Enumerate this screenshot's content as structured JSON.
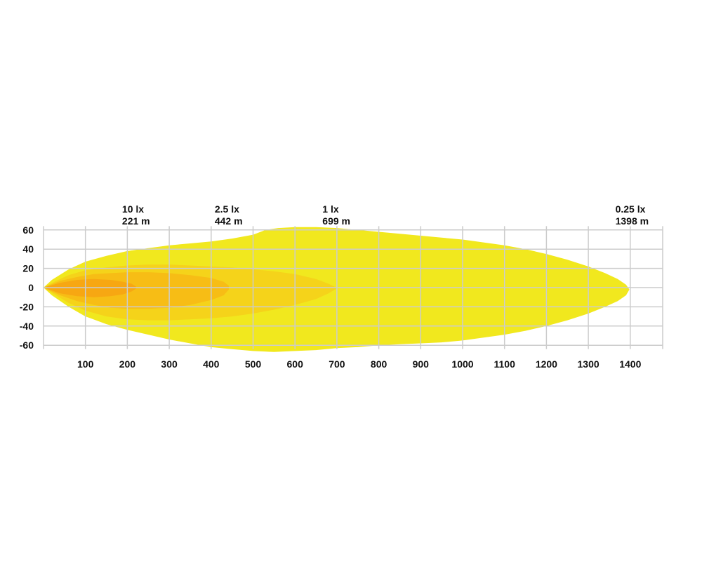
{
  "chart_data": {
    "type": "area",
    "xlabel": "",
    "ylabel": "",
    "xlim": [
      0,
      1480
    ],
    "ylim": [
      -70,
      70
    ],
    "x_ticks": [
      100,
      200,
      300,
      400,
      500,
      600,
      700,
      800,
      900,
      1000,
      1100,
      1200,
      1300,
      1400
    ],
    "y_ticks": [
      60,
      40,
      20,
      0,
      -20,
      -40,
      -60
    ],
    "grid": true,
    "zone_labels": [
      {
        "lux": "10 lx",
        "distance": "221 m",
        "x": 221
      },
      {
        "lux": "2.5 lx",
        "distance": "442 m",
        "x": 442
      },
      {
        "lux": "1 lx",
        "distance": "699 m",
        "x": 699
      },
      {
        "lux": "0.25 lx",
        "distance": "1398 m",
        "x": 1398
      }
    ],
    "contours": [
      {
        "lux": "0.25 lx",
        "color": "#f1e81e",
        "upper": [
          [
            0,
            0
          ],
          [
            20,
            8
          ],
          [
            60,
            19
          ],
          [
            100,
            27
          ],
          [
            150,
            33
          ],
          [
            200,
            38
          ],
          [
            250,
            41
          ],
          [
            300,
            44
          ],
          [
            350,
            46
          ],
          [
            400,
            48
          ],
          [
            450,
            51
          ],
          [
            500,
            55
          ],
          [
            530,
            60
          ],
          [
            560,
            62
          ],
          [
            600,
            63
          ],
          [
            650,
            63
          ],
          [
            700,
            62
          ],
          [
            750,
            60
          ],
          [
            800,
            58
          ],
          [
            850,
            56
          ],
          [
            900,
            54
          ],
          [
            950,
            52
          ],
          [
            1000,
            50
          ],
          [
            1050,
            47
          ],
          [
            1100,
            44
          ],
          [
            1150,
            40
          ],
          [
            1200,
            35
          ],
          [
            1250,
            29
          ],
          [
            1300,
            22
          ],
          [
            1340,
            15
          ],
          [
            1370,
            9
          ],
          [
            1390,
            3
          ],
          [
            1398,
            -2
          ]
        ],
        "lower": [
          [
            0,
            0
          ],
          [
            20,
            -8
          ],
          [
            60,
            -20
          ],
          [
            100,
            -30
          ],
          [
            150,
            -38
          ],
          [
            200,
            -44
          ],
          [
            250,
            -49
          ],
          [
            300,
            -54
          ],
          [
            350,
            -58
          ],
          [
            400,
            -62
          ],
          [
            450,
            -64
          ],
          [
            500,
            -66
          ],
          [
            550,
            -67
          ],
          [
            600,
            -66
          ],
          [
            650,
            -65
          ],
          [
            700,
            -63
          ],
          [
            750,
            -62
          ],
          [
            800,
            -60
          ],
          [
            850,
            -59
          ],
          [
            900,
            -58
          ],
          [
            950,
            -57
          ],
          [
            1000,
            -55
          ],
          [
            1050,
            -52
          ],
          [
            1100,
            -49
          ],
          [
            1150,
            -45
          ],
          [
            1200,
            -40
          ],
          [
            1250,
            -34
          ],
          [
            1300,
            -27
          ],
          [
            1340,
            -20
          ],
          [
            1370,
            -14
          ],
          [
            1390,
            -8
          ]
        ]
      },
      {
        "lux": "1 lx",
        "color": "#f5d31a",
        "upper": [
          [
            0,
            0
          ],
          [
            30,
            7
          ],
          [
            60,
            13
          ],
          [
            100,
            18
          ],
          [
            150,
            21
          ],
          [
            200,
            23
          ],
          [
            250,
            24
          ],
          [
            300,
            24
          ],
          [
            350,
            23
          ],
          [
            400,
            22
          ],
          [
            450,
            21
          ],
          [
            500,
            19
          ],
          [
            550,
            17
          ],
          [
            600,
            14
          ],
          [
            650,
            9
          ],
          [
            680,
            4
          ],
          [
            699,
            0
          ]
        ],
        "lower": [
          [
            0,
            0
          ],
          [
            30,
            -8
          ],
          [
            60,
            -16
          ],
          [
            100,
            -24
          ],
          [
            150,
            -30
          ],
          [
            200,
            -33
          ],
          [
            250,
            -34
          ],
          [
            300,
            -34
          ],
          [
            350,
            -33
          ],
          [
            400,
            -32
          ],
          [
            450,
            -30
          ],
          [
            500,
            -27
          ],
          [
            550,
            -23
          ],
          [
            600,
            -18
          ],
          [
            650,
            -12
          ],
          [
            680,
            -6
          ],
          [
            699,
            -1
          ]
        ]
      },
      {
        "lux": "2.5 lx",
        "color": "#f7bd15",
        "upper": [
          [
            0,
            0
          ],
          [
            40,
            7
          ],
          [
            80,
            11
          ],
          [
            120,
            14
          ],
          [
            160,
            15
          ],
          [
            200,
            16
          ],
          [
            250,
            16
          ],
          [
            300,
            15
          ],
          [
            350,
            13
          ],
          [
            400,
            10
          ],
          [
            430,
            6
          ],
          [
            442,
            2
          ]
        ],
        "lower": [
          [
            0,
            0
          ],
          [
            40,
            -8
          ],
          [
            80,
            -14
          ],
          [
            120,
            -18
          ],
          [
            160,
            -21
          ],
          [
            200,
            -22
          ],
          [
            250,
            -22
          ],
          [
            300,
            -21
          ],
          [
            350,
            -18
          ],
          [
            400,
            -13
          ],
          [
            430,
            -8
          ],
          [
            442,
            -2
          ]
        ]
      },
      {
        "lux": "10 lx",
        "color": "#f7a712",
        "upper": [
          [
            0,
            0
          ],
          [
            40,
            5
          ],
          [
            80,
            8
          ],
          [
            120,
            9
          ],
          [
            160,
            8
          ],
          [
            190,
            6
          ],
          [
            210,
            4
          ],
          [
            221,
            1
          ]
        ],
        "lower": [
          [
            0,
            0
          ],
          [
            40,
            -6
          ],
          [
            80,
            -9
          ],
          [
            120,
            -10
          ],
          [
            160,
            -9
          ],
          [
            190,
            -7
          ],
          [
            210,
            -4
          ],
          [
            221,
            -1
          ]
        ]
      }
    ]
  }
}
